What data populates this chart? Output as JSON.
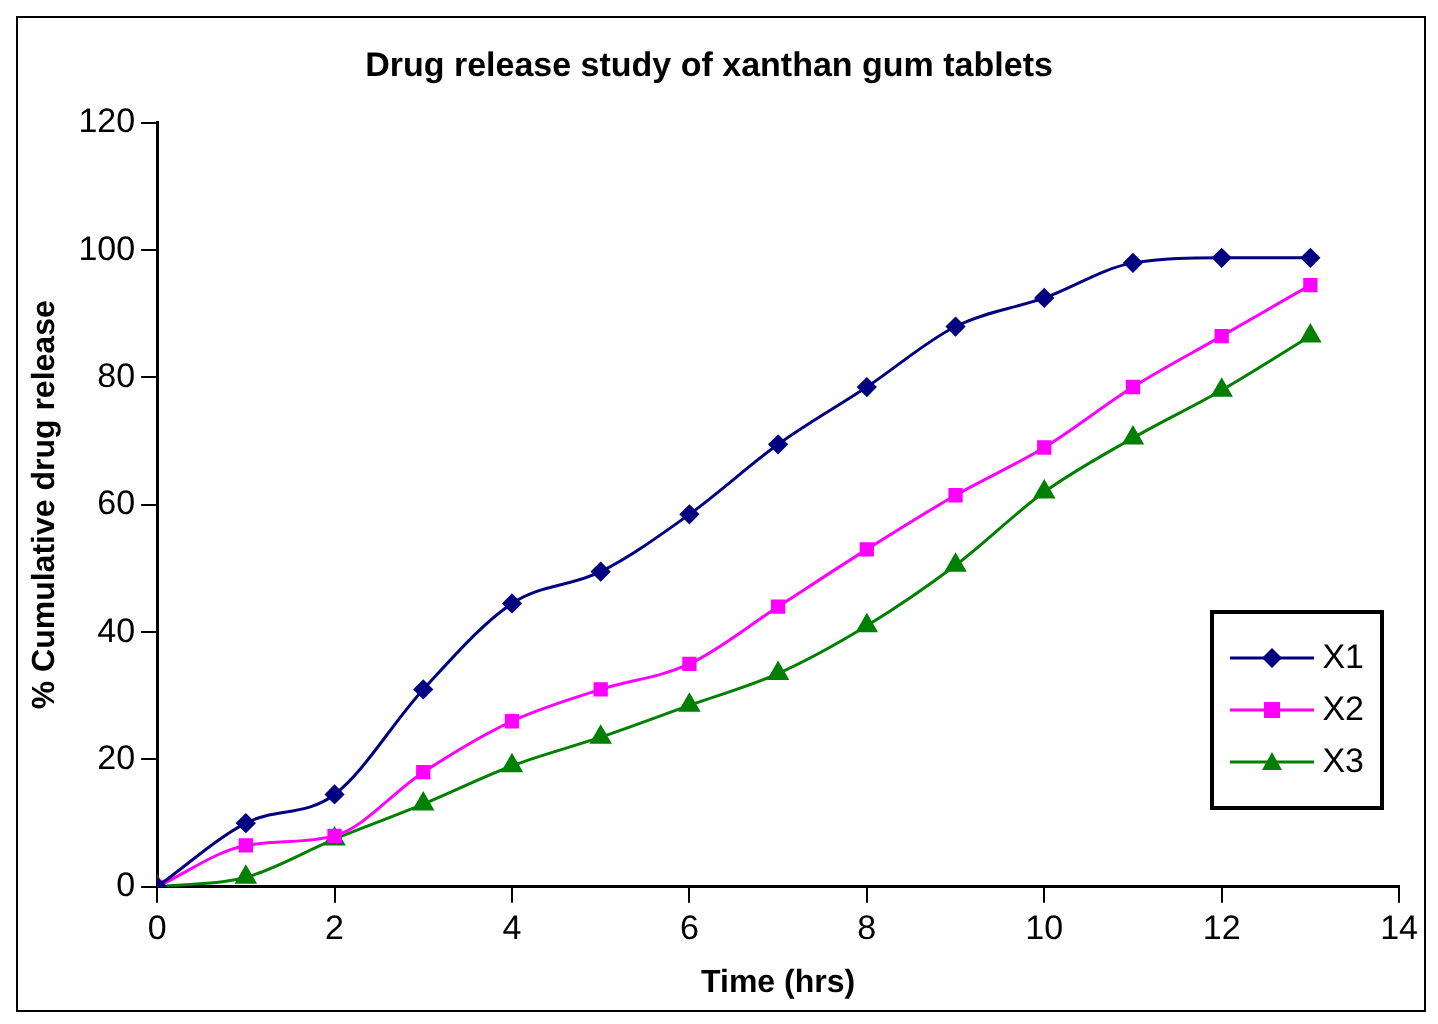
{
  "chart_data": {
    "type": "line",
    "title": "Drug release study of xanthan gum tablets",
    "xlabel": "Time (hrs)",
    "ylabel": "% Cumulative drug release",
    "x": [
      0,
      1,
      2,
      3,
      4,
      5,
      6,
      7,
      8,
      9,
      10,
      11,
      12,
      13
    ],
    "series": [
      {
        "name": "X1",
        "color": "#000080",
        "marker": "diamond",
        "values": [
          0,
          10,
          14.5,
          31,
          44.5,
          49.5,
          58.5,
          69.5,
          78.5,
          88,
          92.5,
          98,
          98.8,
          98.8
        ]
      },
      {
        "name": "X2",
        "color": "#ff00ff",
        "marker": "square",
        "values": [
          0,
          6.5,
          8,
          18,
          26,
          31,
          35,
          44,
          53,
          61.5,
          69,
          78.5,
          86.5,
          94.5
        ]
      },
      {
        "name": "X3",
        "color": "#008000",
        "marker": "triangle",
        "values": [
          0,
          1.5,
          7.5,
          13,
          19,
          23.5,
          28.5,
          33.5,
          41,
          50.5,
          62,
          70.5,
          78,
          86.5
        ]
      }
    ],
    "xlim": [
      0,
      14
    ],
    "xticks": [
      0,
      2,
      4,
      6,
      8,
      10,
      12,
      14
    ],
    "ylim": [
      0,
      120
    ],
    "yticks": [
      0,
      20,
      40,
      60,
      80,
      100,
      120
    ],
    "grid": false,
    "legend": "bottom right",
    "line_style": "solid"
  }
}
